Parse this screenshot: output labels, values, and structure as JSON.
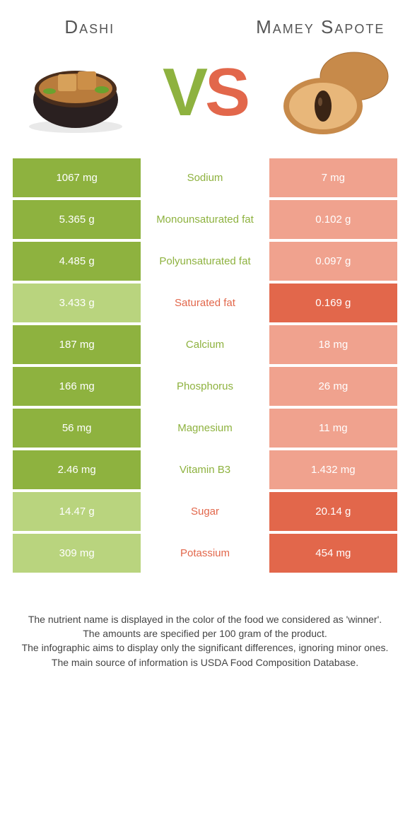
{
  "titles": {
    "left": "Dashi",
    "right": "Mamey Sapote"
  },
  "vs": {
    "v": "V",
    "s": "S"
  },
  "colors": {
    "green": "#8eb23f",
    "green_light": "#b9d47e",
    "orange": "#e2674b",
    "orange_light": "#f0a28e"
  },
  "rows": [
    {
      "left": "1067 mg",
      "nutrient": "Sodium",
      "right": "7 mg",
      "winner": "left"
    },
    {
      "left": "5.365 g",
      "nutrient": "Monounsaturated fat",
      "right": "0.102 g",
      "winner": "left"
    },
    {
      "left": "4.485 g",
      "nutrient": "Polyunsaturated fat",
      "right": "0.097 g",
      "winner": "left"
    },
    {
      "left": "3.433 g",
      "nutrient": "Saturated fat",
      "right": "0.169 g",
      "winner": "right"
    },
    {
      "left": "187 mg",
      "nutrient": "Calcium",
      "right": "18 mg",
      "winner": "left"
    },
    {
      "left": "166 mg",
      "nutrient": "Phosphorus",
      "right": "26 mg",
      "winner": "left"
    },
    {
      "left": "56 mg",
      "nutrient": "Magnesium",
      "right": "11 mg",
      "winner": "left"
    },
    {
      "left": "2.46 mg",
      "nutrient": "Vitamin B3",
      "right": "1.432 mg",
      "winner": "left"
    },
    {
      "left": "14.47 g",
      "nutrient": "Sugar",
      "right": "20.14 g",
      "winner": "right"
    },
    {
      "left": "309 mg",
      "nutrient": "Potassium",
      "right": "454 mg",
      "winner": "right"
    }
  ],
  "footnotes": [
    "The nutrient name is displayed in the color of the food we considered as 'winner'.",
    "The amounts are specified per 100 gram of the product.",
    "The infographic aims to display only the significant differences, ignoring minor ones.",
    "The main source of information is USDA Food Composition Database."
  ]
}
